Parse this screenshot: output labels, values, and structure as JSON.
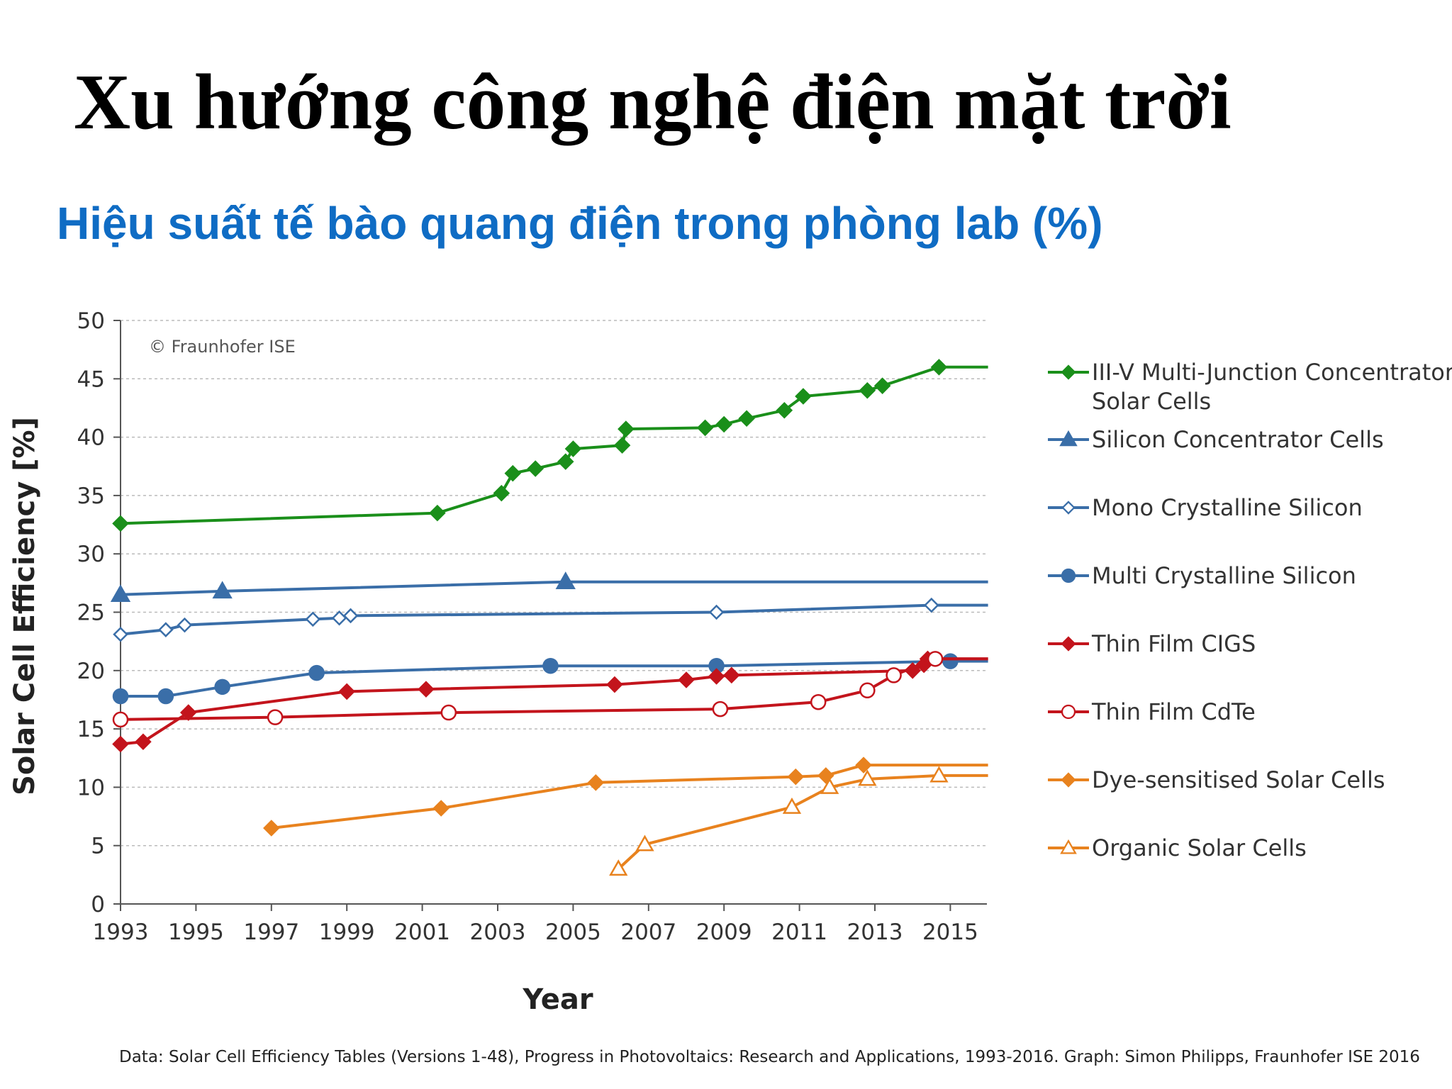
{
  "slide": {
    "title": "Xu hướng công nghệ điện mặt trời",
    "subtitle": "Hiệu suất tế bào quang điện trong phòng lab (%)",
    "footer": "Data: Solar Cell Efficiency Tables (Versions 1-48), Progress in Photovoltaics: Research and Applications, 1993-2016. Graph: Simon Philipps, Fraunhofer ISE 2016"
  },
  "chart_data": {
    "type": "line",
    "title": "",
    "xlabel": "Year",
    "ylabel": "Solar Cell Efficiency [%]",
    "xlim": [
      1993,
      2016
    ],
    "ylim": [
      0,
      50
    ],
    "x_ticks": [
      1993,
      1995,
      1997,
      1999,
      2001,
      2003,
      2005,
      2007,
      2009,
      2011,
      2013,
      2015
    ],
    "y_ticks": [
      0,
      5,
      10,
      15,
      20,
      25,
      30,
      35,
      40,
      45,
      50
    ],
    "grid": "horizontal-dashed",
    "legend_position": "right",
    "annotation": "© Fraunhofer ISE",
    "series": [
      {
        "name": "III-V Multi-Junction Concentrator Solar Cells",
        "legend_lines": [
          "III-V Multi-Junction Concentrator",
          "Solar Cells"
        ],
        "color": "#1a8f1a",
        "marker": "diamond-filled",
        "points": [
          [
            1993.0,
            32.6
          ],
          [
            2001.4,
            33.5
          ],
          [
            2003.1,
            35.2
          ],
          [
            2003.4,
            36.9
          ],
          [
            2004.0,
            37.3
          ],
          [
            2004.8,
            37.9
          ],
          [
            2005.0,
            39.0
          ],
          [
            2006.3,
            39.3
          ],
          [
            2006.4,
            40.7
          ],
          [
            2008.5,
            40.8
          ],
          [
            2009.0,
            41.1
          ],
          [
            2009.6,
            41.6
          ],
          [
            2010.6,
            42.3
          ],
          [
            2011.1,
            43.5
          ],
          [
            2012.8,
            44.0
          ],
          [
            2013.2,
            44.4
          ],
          [
            2014.7,
            46.0
          ],
          [
            2016.0,
            46.0
          ]
        ]
      },
      {
        "name": "Silicon Concentrator Cells",
        "legend_lines": [
          "Silicon Concentrator Cells"
        ],
        "color": "#3a6ea8",
        "marker": "triangle-filled",
        "points": [
          [
            1993.0,
            26.5
          ],
          [
            1995.7,
            26.8
          ],
          [
            2004.8,
            27.6
          ],
          [
            2016.0,
            27.6
          ]
        ]
      },
      {
        "name": "Mono Crystalline Silicon",
        "legend_lines": [
          "Mono Crystalline Silicon"
        ],
        "color": "#3a6ea8",
        "marker": "diamond-open",
        "points": [
          [
            1993.0,
            23.1
          ],
          [
            1994.2,
            23.5
          ],
          [
            1994.7,
            23.9
          ],
          [
            1998.1,
            24.4
          ],
          [
            1998.8,
            24.5
          ],
          [
            1999.1,
            24.7
          ],
          [
            2008.8,
            25.0
          ],
          [
            2014.5,
            25.6
          ],
          [
            2016.0,
            25.6
          ]
        ]
      },
      {
        "name": "Multi Crystalline Silicon",
        "legend_lines": [
          "Multi Crystalline Silicon"
        ],
        "color": "#3a6ea8",
        "marker": "circle-filled",
        "points": [
          [
            1993.0,
            17.8
          ],
          [
            1994.2,
            17.8
          ],
          [
            1995.7,
            18.6
          ],
          [
            1998.2,
            19.8
          ],
          [
            2004.4,
            20.4
          ],
          [
            2008.8,
            20.4
          ],
          [
            2015.0,
            20.8
          ],
          [
            2016.0,
            20.8
          ]
        ]
      },
      {
        "name": "Thin Film CIGS",
        "legend_lines": [
          "Thin Film CIGS"
        ],
        "color": "#c3141c",
        "marker": "diamond-filled",
        "points": [
          [
            1993.0,
            13.7
          ],
          [
            1993.6,
            13.9
          ],
          [
            1994.8,
            16.4
          ],
          [
            1999.0,
            18.2
          ],
          [
            2001.1,
            18.4
          ],
          [
            2006.1,
            18.8
          ],
          [
            2008.0,
            19.2
          ],
          [
            2008.8,
            19.5
          ],
          [
            2009.2,
            19.6
          ],
          [
            2014.0,
            20.0
          ],
          [
            2014.3,
            20.5
          ],
          [
            2014.4,
            21.0
          ],
          [
            2016.0,
            21.0
          ]
        ]
      },
      {
        "name": "Thin Film CdTe",
        "legend_lines": [
          "Thin Film CdTe"
        ],
        "color": "#c3141c",
        "marker": "circle-open",
        "points": [
          [
            1993.0,
            15.8
          ],
          [
            1997.1,
            16.0
          ],
          [
            2001.7,
            16.4
          ],
          [
            2008.9,
            16.7
          ],
          [
            2011.5,
            17.3
          ],
          [
            2012.8,
            18.3
          ],
          [
            2013.5,
            19.6
          ],
          [
            2014.6,
            21.0
          ],
          [
            2016.0,
            21.0
          ]
        ]
      },
      {
        "name": "Dye-sensitised Solar Cells",
        "legend_lines": [
          "Dye-sensitised Solar Cells"
        ],
        "color": "#e8821e",
        "marker": "diamond-filled",
        "points": [
          [
            1997.0,
            6.5
          ],
          [
            2001.5,
            8.2
          ],
          [
            2005.6,
            10.4
          ],
          [
            2010.9,
            10.9
          ],
          [
            2011.7,
            11.0
          ],
          [
            2012.7,
            11.9
          ],
          [
            2016.0,
            11.9
          ]
        ]
      },
      {
        "name": "Organic Solar Cells",
        "legend_lines": [
          "Organic Solar Cells"
        ],
        "color": "#e8821e",
        "marker": "triangle-open",
        "points": [
          [
            2006.2,
            3.0
          ],
          [
            2006.9,
            5.1
          ],
          [
            2010.8,
            8.3
          ],
          [
            2011.8,
            10.0
          ],
          [
            2012.8,
            10.7
          ],
          [
            2014.7,
            11.0
          ],
          [
            2016.0,
            11.0
          ]
        ]
      }
    ]
  }
}
